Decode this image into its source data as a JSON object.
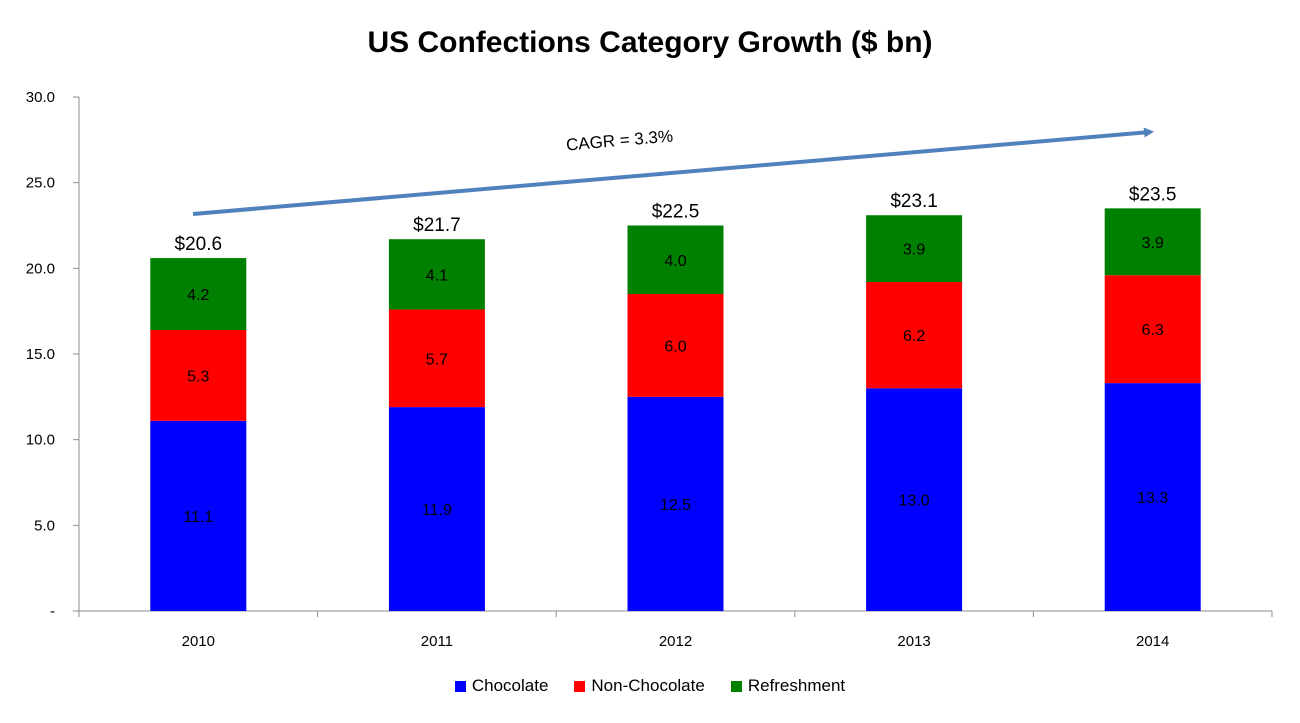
{
  "chart_data": {
    "type": "bar",
    "stacked": true,
    "title": "US Confections Category Growth ($ bn)",
    "xlabel": "",
    "ylabel": "",
    "ylim": [
      0,
      30
    ],
    "yticks": [
      "-",
      "5.0",
      "10.0",
      "15.0",
      "20.0",
      "25.0",
      "30.0"
    ],
    "ytick_values": [
      0,
      5,
      10,
      15,
      20,
      25,
      30
    ],
    "categories": [
      "2010",
      "2011",
      "2012",
      "2013",
      "2014"
    ],
    "series": [
      {
        "name": "Chocolate",
        "color": "#0000ff",
        "values": [
          11.1,
          11.9,
          12.5,
          13.0,
          13.3
        ],
        "labels": [
          "11.1",
          "11.9",
          "12.5",
          "13.0",
          "13.3"
        ]
      },
      {
        "name": "Non-Chocolate",
        "color": "#ff0000",
        "values": [
          5.3,
          5.7,
          6.0,
          6.2,
          6.3
        ],
        "labels": [
          "5.3",
          "5.7",
          "6.0",
          "6.2",
          "6.3"
        ]
      },
      {
        "name": "Refreshment",
        "color": "#008000",
        "values": [
          4.2,
          4.1,
          4.0,
          3.9,
          3.9
        ],
        "labels": [
          "4.2",
          "4.1",
          "4.0",
          "3.9",
          "3.9"
        ]
      }
    ],
    "totals": [
      20.6,
      21.7,
      22.5,
      23.1,
      23.5
    ],
    "total_labels": [
      "$20.6",
      "$21.7",
      "$22.5",
      "$23.1",
      "$23.5"
    ],
    "annotation": {
      "text": "CAGR = 3.3%",
      "arrow_color": "#4f81bd"
    },
    "legend_position": "bottom"
  }
}
